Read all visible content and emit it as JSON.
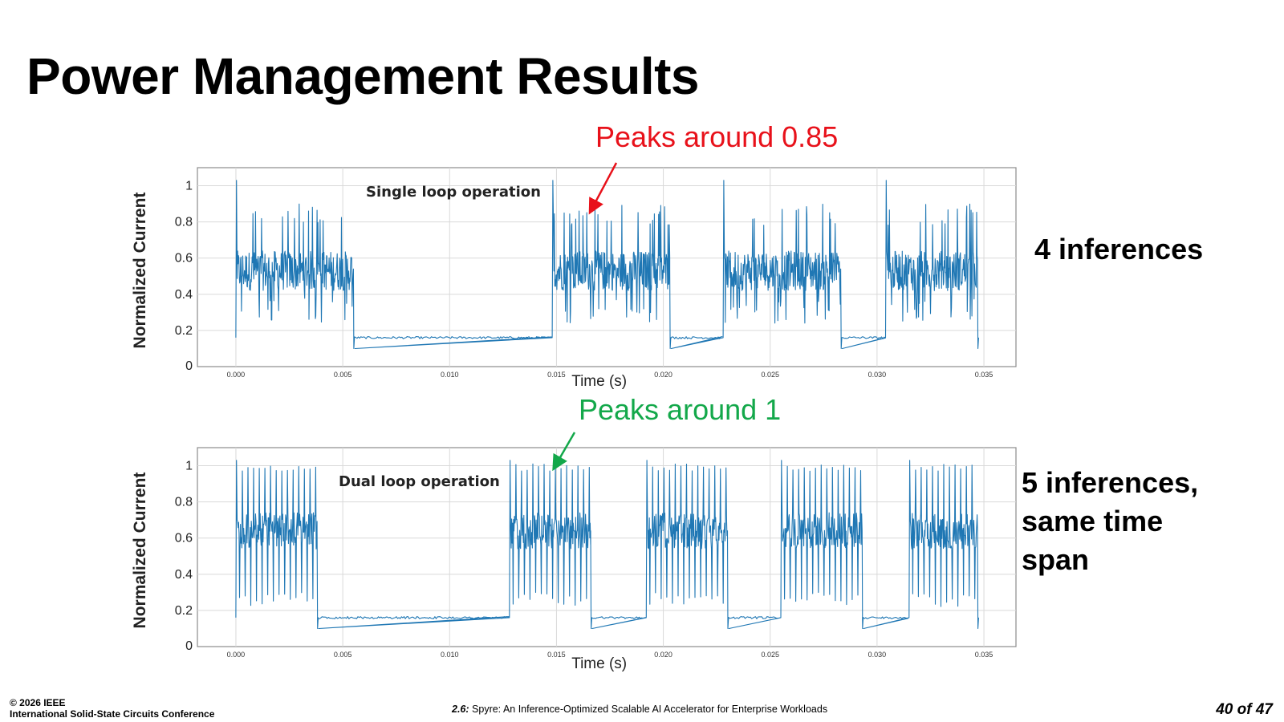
{
  "slide": {
    "title": "Power Management Results",
    "page_indicator": "40 of 47"
  },
  "footer": {
    "copyright": "© 2026 IEEE",
    "conference": "International Solid-State Circuits Conference",
    "paper_number": "2.6:",
    "paper_title": "Spyre: An Inference-Optimized Scalable AI Accelerator for Enterprise Workloads"
  },
  "side_labels": {
    "top": "4 inferences",
    "bottom_lines": [
      "5 inferences,",
      "same time",
      "span"
    ]
  },
  "colors": {
    "trace": "#1f77b4",
    "annotation_red": "#e8111a",
    "annotation_green": "#13a84a",
    "grid": "#d9d9d9",
    "frame": "#8c8c8c"
  },
  "chart_data": [
    {
      "type": "line",
      "inset_label": "Single loop operation",
      "annotation": {
        "text": "Peaks around 0.85",
        "x": 0.0166,
        "y": 0.86
      },
      "xlabel": "Time (s)",
      "ylabel": "Normalized Current",
      "xlim": [
        -0.0018,
        0.0365
      ],
      "ylim": [
        0,
        1.1
      ],
      "x_ticks": [
        "0.000",
        "0.005",
        "0.010",
        "0.015",
        "0.020",
        "0.025",
        "0.030",
        "0.035"
      ],
      "y_ticks": [
        "0",
        "0.2",
        "0.4",
        "0.6",
        "0.8",
        "1"
      ],
      "grid": true,
      "series": [
        {
          "active_segments": [
            [
              0.0,
              0.0055
            ],
            [
              0.0148,
              0.0203
            ],
            [
              0.0228,
              0.0283
            ],
            [
              0.0304,
              0.0347
            ]
          ],
          "active_center": 0.54,
          "active_band": [
            0.42,
            0.64
          ],
          "active_peak_range": [
            0.78,
            0.9
          ],
          "active_trough_range": [
            0.24,
            0.38
          ],
          "burst_start_peak": 1.03,
          "idle_level": 0.16
        }
      ]
    },
    {
      "type": "line",
      "inset_label": "Dual loop operation",
      "annotation": {
        "text": "Peaks around 1",
        "x": 0.0149,
        "y": 0.99
      },
      "xlabel": "Time (s)",
      "ylabel": "Normalized Current",
      "xlim": [
        -0.0018,
        0.0365
      ],
      "ylim": [
        0,
        1.1
      ],
      "x_ticks": [
        "0.000",
        "0.005",
        "0.010",
        "0.015",
        "0.020",
        "0.025",
        "0.030",
        "0.035"
      ],
      "y_ticks": [
        "0",
        "0.2",
        "0.4",
        "0.6",
        "0.8",
        "1"
      ],
      "grid": true,
      "series": [
        {
          "active_segments": [
            [
              0.0,
              0.0038
            ],
            [
              0.0128,
              0.0166
            ],
            [
              0.0192,
              0.023
            ],
            [
              0.0255,
              0.0293
            ],
            [
              0.0315,
              0.0347
            ]
          ],
          "active_center": 0.64,
          "active_band": [
            0.54,
            0.74
          ],
          "active_peak_range": [
            0.97,
            1.01
          ],
          "active_trough_range": [
            0.22,
            0.3
          ],
          "burst_start_peak": 1.03,
          "idle_level": 0.16
        }
      ]
    }
  ]
}
